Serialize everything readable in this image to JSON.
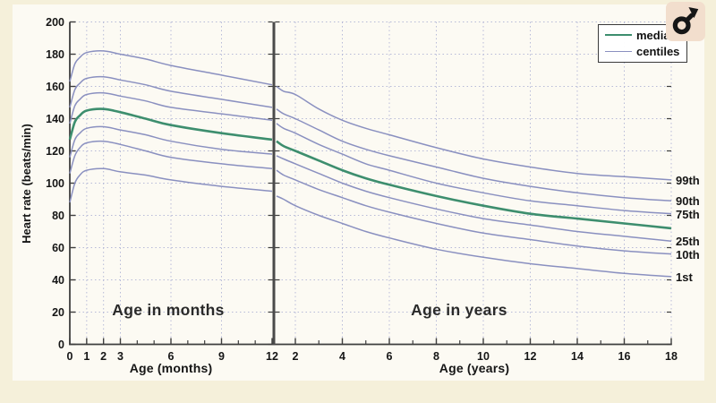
{
  "figure": {
    "sex_icon": "male-symbol",
    "ylabel": "Heart rate (beats/min)"
  },
  "chart_data": {
    "type": "line",
    "title": "",
    "ylabel": "Heart rate (beats/min)",
    "ylim": [
      0,
      200
    ],
    "y_ticks": [
      0,
      20,
      40,
      60,
      80,
      100,
      120,
      140,
      160,
      180,
      200
    ],
    "grid": "dotted",
    "legend_position": "top-right",
    "legend": [
      {
        "label": "median",
        "color": "#3d8e6e"
      },
      {
        "label": "centiles",
        "color": "#8a90c0"
      }
    ],
    "panels": [
      {
        "id": "months",
        "caption": "Age in months",
        "xlabel": "Age (months)",
        "xlim": [
          0,
          12
        ],
        "x_ticks_labeled": [
          0,
          1,
          2,
          3,
          6,
          9,
          12
        ],
        "x_ticks_minor": [
          4,
          5,
          7,
          8,
          10,
          11
        ],
        "x_gridlines": [
          1,
          2,
          3,
          6,
          9
        ],
        "x": [
          0,
          0.3,
          0.6,
          1,
          2,
          3,
          4.5,
          6,
          9,
          12
        ],
        "series": [
          {
            "name": "1st",
            "role": "centile",
            "values": [
              88,
              100,
              105,
              108,
              109,
              107,
              105,
              102,
              98,
              95
            ]
          },
          {
            "name": "10th",
            "role": "centile",
            "values": [
              106,
              117,
              122,
              125,
              126,
              124,
              120,
              116,
              112,
              109
            ]
          },
          {
            "name": "25th",
            "role": "centile",
            "values": [
              116,
              127,
              131,
              134,
              135,
              133,
              130,
              126,
              121,
              118
            ]
          },
          {
            "name": "median",
            "role": "median",
            "values": [
              127,
              138,
              142,
              145,
              146,
              144,
              140,
              136,
              131,
              127
            ]
          },
          {
            "name": "75th",
            "role": "centile",
            "values": [
              137,
              148,
              152,
              155,
              156,
              154,
              151,
              147,
              143,
              139
            ]
          },
          {
            "name": "90th",
            "role": "centile",
            "values": [
              147,
              158,
              162,
              165,
              166,
              164,
              161,
              157,
              152,
              147
            ]
          },
          {
            "name": "99th",
            "role": "centile",
            "values": [
              163,
              174,
              178,
              181,
              182,
              180,
              177,
              173,
              167,
              161
            ]
          }
        ]
      },
      {
        "id": "years",
        "caption": "Age in years",
        "xlabel": "Age (years)",
        "xlim": [
          1.2,
          18
        ],
        "x_ticks_labeled": [
          2,
          4,
          6,
          8,
          10,
          12,
          14,
          16,
          18
        ],
        "x_ticks_minor": [
          3,
          5,
          7,
          9,
          11,
          13,
          15,
          17
        ],
        "x_gridlines": [
          2,
          4,
          6,
          8,
          10,
          12,
          14,
          16,
          18
        ],
        "x": [
          1.2,
          1.5,
          2,
          3,
          4,
          5,
          6,
          8,
          10,
          12,
          14,
          16,
          18
        ],
        "series": [
          {
            "name": "1st",
            "role": "centile",
            "end_label": "1st",
            "values": [
              92,
              90,
              86,
              80,
              75,
              70,
              66,
              59,
              54,
              50,
              47,
              44,
              42
            ]
          },
          {
            "name": "10th",
            "role": "centile",
            "end_label": "10th",
            "values": [
              108,
              105,
              102,
              96,
              91,
              86,
              82,
              75,
              69,
              65,
              61,
              58,
              56
            ]
          },
          {
            "name": "25th",
            "role": "centile",
            "end_label": "25th",
            "values": [
              117,
              115,
              112,
              106,
              100,
              95,
              91,
              84,
              78,
              74,
              70,
              67,
              64
            ]
          },
          {
            "name": "median",
            "role": "median",
            "end_label": "",
            "values": [
              126,
              123,
              120,
              114,
              108,
              103,
              99,
              92,
              86,
              81,
              78,
              75,
              72
            ]
          },
          {
            "name": "75th",
            "role": "centile",
            "end_label": "75th",
            "values": [
              137,
              134,
              131,
              124,
              118,
              112,
              108,
              100,
              94,
              89,
              86,
              83,
              81
            ]
          },
          {
            "name": "90th",
            "role": "centile",
            "end_label": "90th",
            "values": [
              146,
              143,
              140,
              133,
              126,
              121,
              117,
              110,
              103,
              98,
              94,
              91,
              89
            ]
          },
          {
            "name": "99th",
            "role": "centile",
            "end_label": "99th",
            "values": [
              160,
              157,
              155,
              146,
              139,
              134,
              130,
              122,
              115,
              110,
              106,
              104,
              102
            ]
          }
        ]
      }
    ]
  },
  "colors": {
    "median_line": "#3d8e6e",
    "centile_line": "#8a90c0",
    "gridline": "#b7bbd8",
    "spine": "#3e3e3e",
    "text": "#151515",
    "page_background": "#f5f0da",
    "figure_background": "#fcfaf3",
    "icon_background": "#f2decd",
    "icon_foreground": "#161616"
  }
}
